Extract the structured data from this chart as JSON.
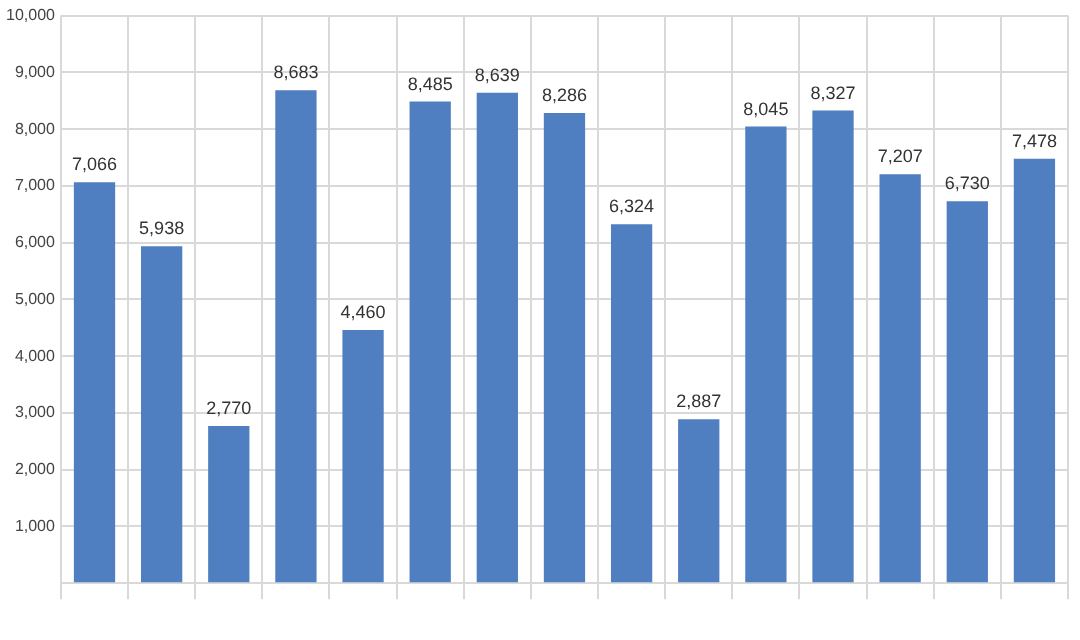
{
  "chart_data": {
    "type": "bar",
    "categories": [
      null,
      null,
      null,
      null,
      null,
      null,
      null,
      null,
      null,
      null,
      null,
      null,
      null,
      null,
      null
    ],
    "values": [
      7066,
      5938,
      2770,
      8683,
      4460,
      8485,
      8639,
      8286,
      6324,
      2887,
      8045,
      8327,
      7207,
      6730,
      7478
    ],
    "value_labels": [
      "7,066",
      "5,938",
      "2,770",
      "8,683",
      "4,460",
      "8,485",
      "8,639",
      "8,286",
      "6,324",
      "2,887",
      "8,045",
      "8,327",
      "7,207",
      "6,730",
      "7,478"
    ],
    "color": "#4f7fc0",
    "ylim": [
      0,
      10000
    ],
    "yticks": [
      {
        "value": 0,
        "label": null
      },
      {
        "value": 1000,
        "label": "1,000"
      },
      {
        "value": 2000,
        "label": "2,000"
      },
      {
        "value": 3000,
        "label": "3,000"
      },
      {
        "value": 4000,
        "label": "4,000"
      },
      {
        "value": 5000,
        "label": "5,000"
      },
      {
        "value": 6000,
        "label": "6,000"
      },
      {
        "value": 7000,
        "label": "7,000"
      },
      {
        "value": 8000,
        "label": "8,000"
      },
      {
        "value": 9000,
        "label": "9,000"
      },
      {
        "value": 10000,
        "label": "10,000"
      }
    ],
    "grid": true
  }
}
